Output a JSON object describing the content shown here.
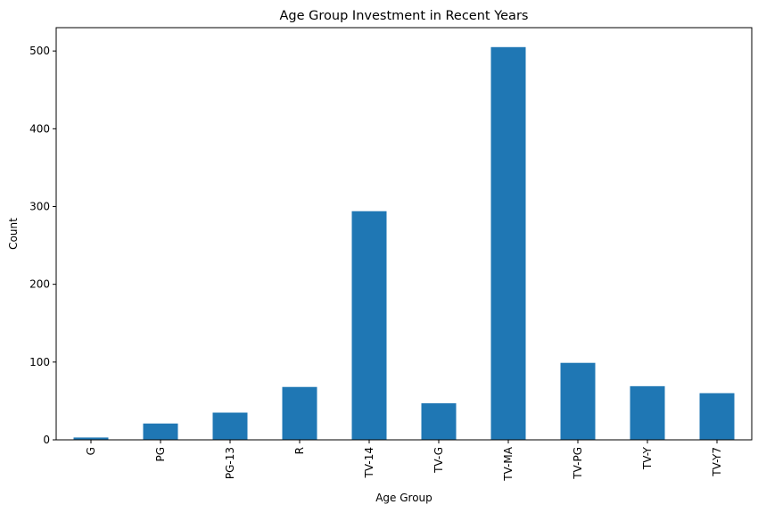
{
  "chart_data": {
    "type": "bar",
    "title": "Age Group Investment in Recent Years",
    "xlabel": "Age Group",
    "ylabel": "Count",
    "categories": [
      "G",
      "PG",
      "PG-13",
      "R",
      "TV-14",
      "TV-G",
      "TV-MA",
      "TV-PG",
      "TV-Y",
      "TV-Y7"
    ],
    "values": [
      3,
      21,
      35,
      68,
      294,
      47,
      505,
      99,
      69,
      60
    ],
    "ylim": [
      0,
      530
    ],
    "yticks": [
      0,
      100,
      200,
      300,
      400,
      500
    ],
    "bar_color": "#1f77b4",
    "grid": false,
    "legend": "none"
  }
}
